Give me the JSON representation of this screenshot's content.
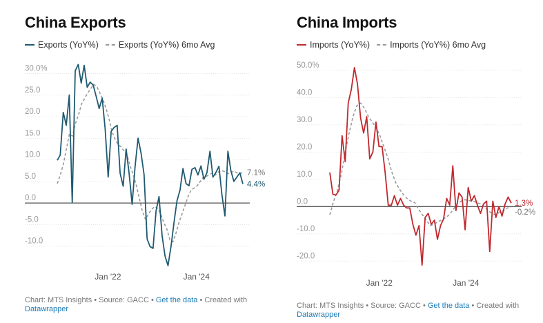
{
  "chart_data": [
    {
      "type": "line",
      "title": "China Exports",
      "legend": [
        {
          "name": "Exports (YoY%)",
          "style": "solid",
          "color": "#1f5a70"
        },
        {
          "name": "Exports (YoY%) 6mo Avg",
          "style": "dashed",
          "color": "#9a9a9a"
        }
      ],
      "ylim": [
        -15,
        32
      ],
      "yticks": [
        -10,
        -5,
        0,
        5,
        10,
        15,
        20,
        25,
        30
      ],
      "ytick_labels": [
        "-10.0",
        "-5.0",
        "0.0",
        "5.0",
        "10.0",
        "15.0",
        "20.0",
        "25.0",
        "30.0%"
      ],
      "xlim": [
        0,
        44
      ],
      "xticks": [
        {
          "x": 12,
          "label": "Jan '22"
        },
        {
          "x": 33,
          "label": "Jan '24"
        }
      ],
      "end_labels": [
        {
          "series": 1,
          "text": "7.1%"
        },
        {
          "series": 0,
          "text": "4.4%"
        }
      ],
      "series": [
        {
          "name": "Exports (YoY%)",
          "color": "#1f5a70",
          "style": "solid",
          "values": [
            9.9,
            11.1,
            21.0,
            18.0,
            25.0,
            0.1,
            30.6,
            32.1,
            27.8,
            31.9,
            26.8,
            28.0,
            27.3,
            24.7,
            21.9,
            24.3,
            17.2,
            6.0,
            16.6,
            17.5,
            18.0,
            6.9,
            3.9,
            12.5,
            6.9,
            -0.3,
            8.5,
            15.0,
            11.5,
            6.6,
            -8.3,
            -10.1,
            -10.5,
            -1.8,
            1.5,
            -7.5,
            -12.3,
            -14.5,
            -10.0,
            -4.5,
            0.5,
            3.0,
            8.0,
            4.5,
            4.0,
            7.8,
            8.2,
            6.5,
            8.6,
            5.5,
            7.0,
            12.0,
            6.0,
            7.1,
            8.5,
            2.0,
            -3.0,
            12.0,
            7.5,
            5.0,
            6.0,
            7.0,
            4.4
          ]
        },
        {
          "name": "Exports (YoY%) 6mo Avg",
          "color": "#9a9a9a",
          "style": "dashed",
          "values": [
            4.5,
            6.5,
            9.0,
            12.5,
            16.0,
            15.5,
            18.5,
            20.5,
            23.0,
            24.2,
            25.5,
            26.5,
            27.5,
            27.0,
            25.5,
            24.0,
            22.0,
            19.5,
            16.5,
            14.8,
            13.5,
            13.0,
            12.0,
            11.0,
            8.5,
            6.5,
            4.0,
            1.0,
            -2.0,
            -3.8,
            -2.5,
            -1.5,
            -0.8,
            -1.2,
            -2.5,
            -4.5,
            -6.0,
            -8.5,
            -9.0,
            -7.0,
            -4.5,
            -2.5,
            -0.5,
            1.5,
            3.0,
            3.5,
            4.0,
            5.0,
            6.0,
            6.2,
            6.6,
            7.0,
            6.5,
            7.2,
            7.5,
            7.3,
            6.8,
            7.0,
            7.4,
            7.0,
            6.8,
            7.1
          ]
        }
      ]
    },
    {
      "type": "line",
      "title": "China Imports",
      "legend": [
        {
          "name": "Imports (YoY%)",
          "style": "solid",
          "color": "#c0282d"
        },
        {
          "name": "Imports (YoY%) 6mo Avg",
          "style": "dashed",
          "color": "#9a9a9a"
        }
      ],
      "ylim": [
        -25,
        52
      ],
      "yticks": [
        -20,
        -10,
        0,
        10,
        20,
        30,
        40,
        50
      ],
      "ytick_labels": [
        "-20.0",
        "-10.0",
        "0.0",
        "10.0",
        "20.0",
        "30.0",
        "40.0",
        "50.0%"
      ],
      "xlim": [
        0,
        44
      ],
      "xticks": [
        {
          "x": 12,
          "label": "Jan '22"
        },
        {
          "x": 33,
          "label": "Jan '24"
        }
      ],
      "end_labels": [
        {
          "series": 0,
          "text": "1.3%"
        },
        {
          "series": 1,
          "text": "-0.2%"
        }
      ],
      "series": [
        {
          "name": "Imports (YoY%)",
          "color": "#c0282d",
          "style": "solid",
          "values": [
            12.5,
            4.5,
            4.2,
            6.0,
            26.0,
            16.5,
            38.0,
            43.0,
            51.0,
            45.0,
            32.5,
            27.0,
            33.0,
            17.5,
            20.0,
            31.0,
            22.0,
            22.0,
            12.5,
            0.5,
            0.5,
            4.0,
            0.5,
            3.0,
            0.5,
            -0.5,
            -0.5,
            -6.5,
            -10.5,
            -7.0,
            -21.5,
            -4.0,
            -2.5,
            -6.5,
            -5.0,
            -12.0,
            -7.0,
            -4.5,
            3.0,
            0.5,
            15.0,
            -1.5,
            5.0,
            3.5,
            -8.5,
            7.0,
            2.0,
            4.0,
            0.5,
            -2.5,
            1.0,
            2.0,
            -16.5,
            2.0,
            -4.0,
            0.0,
            -3.5,
            1.0,
            3.5,
            1.3
          ]
        },
        {
          "name": "Imports (YoY%) 6mo Avg",
          "color": "#9a9a9a",
          "style": "dashed",
          "values": [
            -3.0,
            2.0,
            6.0,
            12.0,
            20.0,
            27.0,
            33.0,
            37.0,
            38.0,
            36.0,
            33.0,
            31.0,
            29.0,
            26.0,
            22.0,
            18.0,
            13.0,
            9.0,
            6.5,
            4.5,
            3.0,
            2.0,
            1.5,
            -1.0,
            -3.0,
            -5.0,
            -7.0,
            -6.5,
            -5.5,
            -5.0,
            -4.0,
            -3.0,
            -1.0,
            1.0,
            2.0,
            2.5,
            2.2,
            2.0,
            1.5,
            1.0,
            0.0,
            -1.5,
            -2.5,
            -3.0,
            -2.0,
            -1.5,
            -0.5,
            -0.2
          ]
        }
      ]
    }
  ],
  "footers": [
    {
      "prefix": "Chart: MTS Insights • Source: GACC • ",
      "link": "Get the data",
      "suffix": " • Created with",
      "line2": "Datawrapper"
    },
    {
      "prefix": "Chart: MTS Insights • Source: GACC • ",
      "link": "Get the data",
      "suffix": " • Created with",
      "line2": "Datawrapper"
    }
  ]
}
